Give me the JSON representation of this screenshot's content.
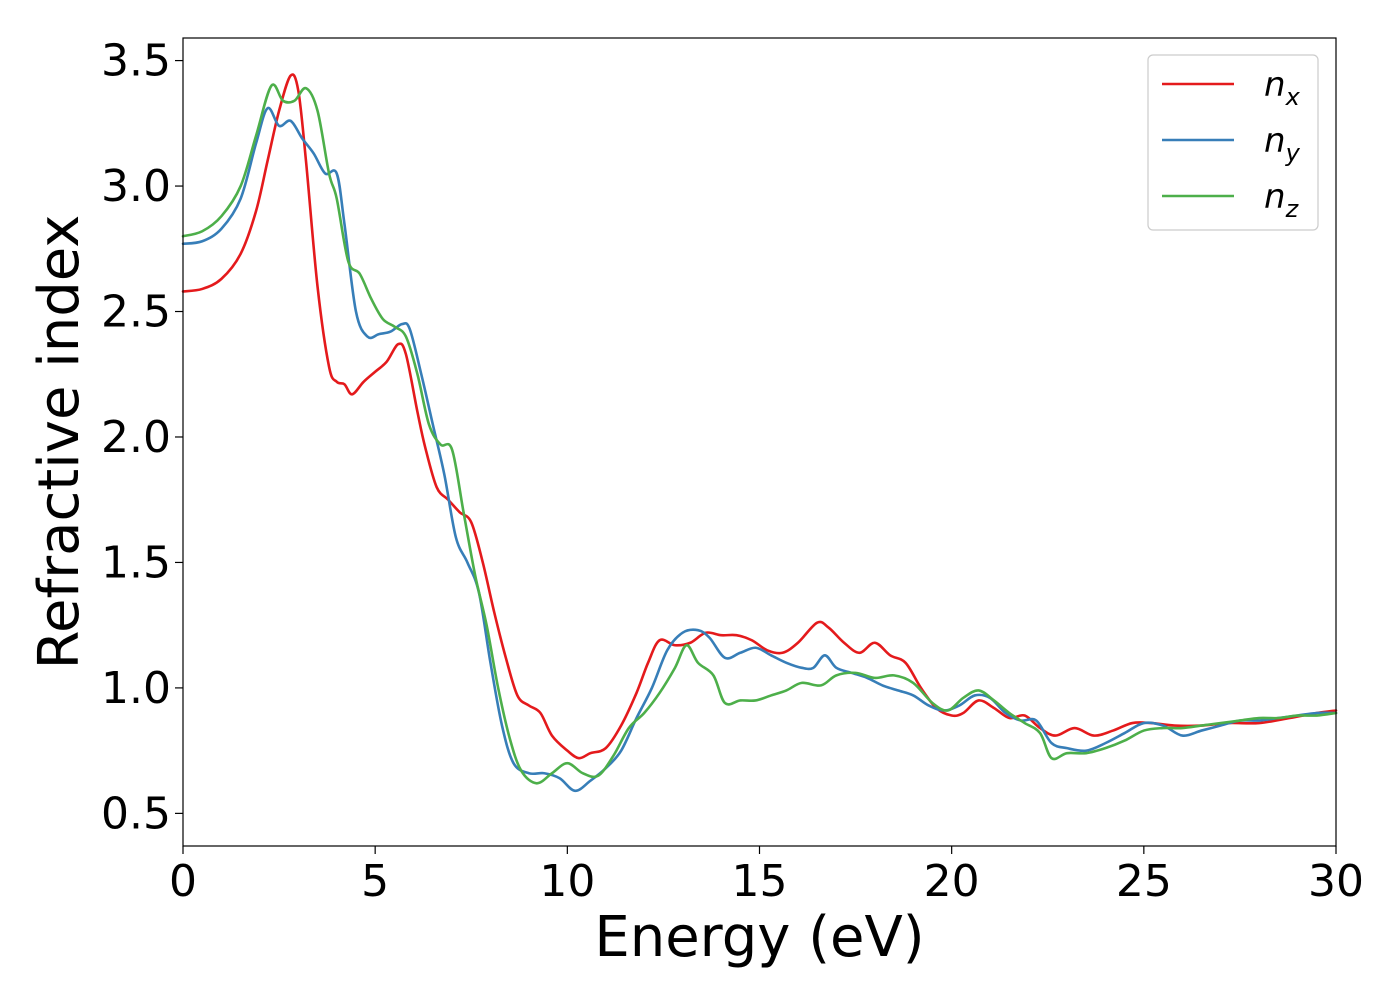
{
  "chart_data": {
    "type": "line",
    "title": "",
    "xlabel": "Energy (eV)",
    "ylabel": "Refractive index",
    "xlim": [
      0,
      30
    ],
    "ylim": [
      0.37,
      3.59
    ],
    "xticks": [
      0,
      5,
      10,
      15,
      20,
      25,
      30
    ],
    "xtick_labels": [
      "0",
      "5",
      "10",
      "15",
      "20",
      "25",
      "30"
    ],
    "yticks": [
      0.5,
      1.0,
      1.5,
      2.0,
      2.5,
      3.0,
      3.5
    ],
    "ytick_labels": [
      "0.5",
      "1.0",
      "1.5",
      "2.0",
      "2.5",
      "3.0",
      "3.5"
    ],
    "grid": false,
    "legend_position": "top-right",
    "series": [
      {
        "name": "n_x",
        "legend_base": "n",
        "legend_sub": "x",
        "color": "#e41a1c",
        "points": [
          [
            0,
            2.58
          ],
          [
            0.5,
            2.59
          ],
          [
            1.0,
            2.63
          ],
          [
            1.5,
            2.73
          ],
          [
            1.9,
            2.9
          ],
          [
            2.2,
            3.1
          ],
          [
            2.5,
            3.3
          ],
          [
            2.8,
            3.44
          ],
          [
            3.0,
            3.38
          ],
          [
            3.2,
            3.1
          ],
          [
            3.5,
            2.6
          ],
          [
            3.8,
            2.28
          ],
          [
            4.0,
            2.22
          ],
          [
            4.2,
            2.21
          ],
          [
            4.4,
            2.17
          ],
          [
            4.7,
            2.22
          ],
          [
            5.0,
            2.26
          ],
          [
            5.3,
            2.3
          ],
          [
            5.6,
            2.37
          ],
          [
            5.8,
            2.33
          ],
          [
            6.1,
            2.1
          ],
          [
            6.3,
            1.96
          ],
          [
            6.6,
            1.8
          ],
          [
            6.9,
            1.75
          ],
          [
            7.2,
            1.7
          ],
          [
            7.5,
            1.66
          ],
          [
            7.8,
            1.5
          ],
          [
            8.1,
            1.3
          ],
          [
            8.4,
            1.12
          ],
          [
            8.7,
            0.97
          ],
          [
            9.0,
            0.93
          ],
          [
            9.3,
            0.9
          ],
          [
            9.6,
            0.81
          ],
          [
            10.0,
            0.75
          ],
          [
            10.3,
            0.72
          ],
          [
            10.6,
            0.74
          ],
          [
            11.0,
            0.76
          ],
          [
            11.4,
            0.85
          ],
          [
            11.8,
            0.98
          ],
          [
            12.1,
            1.1
          ],
          [
            12.4,
            1.19
          ],
          [
            12.8,
            1.17
          ],
          [
            13.2,
            1.18
          ],
          [
            13.6,
            1.22
          ],
          [
            14.0,
            1.21
          ],
          [
            14.4,
            1.21
          ],
          [
            14.8,
            1.19
          ],
          [
            15.2,
            1.15
          ],
          [
            15.6,
            1.14
          ],
          [
            16.0,
            1.18
          ],
          [
            16.5,
            1.26
          ],
          [
            16.8,
            1.24
          ],
          [
            17.2,
            1.18
          ],
          [
            17.6,
            1.14
          ],
          [
            18.0,
            1.18
          ],
          [
            18.4,
            1.13
          ],
          [
            18.8,
            1.1
          ],
          [
            19.2,
            1.0
          ],
          [
            19.6,
            0.92
          ],
          [
            20.0,
            0.89
          ],
          [
            20.3,
            0.9
          ],
          [
            20.7,
            0.95
          ],
          [
            21.1,
            0.92
          ],
          [
            21.5,
            0.88
          ],
          [
            21.9,
            0.89
          ],
          [
            22.3,
            0.84
          ],
          [
            22.7,
            0.81
          ],
          [
            23.2,
            0.84
          ],
          [
            23.7,
            0.81
          ],
          [
            24.2,
            0.83
          ],
          [
            24.7,
            0.86
          ],
          [
            25.2,
            0.86
          ],
          [
            25.8,
            0.85
          ],
          [
            26.5,
            0.85
          ],
          [
            27.2,
            0.86
          ],
          [
            28.0,
            0.86
          ],
          [
            28.8,
            0.88
          ],
          [
            29.5,
            0.9
          ],
          [
            30.0,
            0.91
          ]
        ]
      },
      {
        "name": "n_y",
        "legend_base": "n",
        "legend_sub": "y",
        "color": "#377eb8",
        "points": [
          [
            0,
            2.77
          ],
          [
            0.5,
            2.78
          ],
          [
            1.0,
            2.83
          ],
          [
            1.5,
            2.95
          ],
          [
            1.9,
            3.17
          ],
          [
            2.2,
            3.31
          ],
          [
            2.5,
            3.24
          ],
          [
            2.8,
            3.26
          ],
          [
            3.1,
            3.19
          ],
          [
            3.4,
            3.13
          ],
          [
            3.7,
            3.05
          ],
          [
            4.0,
            3.05
          ],
          [
            4.2,
            2.85
          ],
          [
            4.5,
            2.5
          ],
          [
            4.8,
            2.4
          ],
          [
            5.1,
            2.41
          ],
          [
            5.4,
            2.42
          ],
          [
            5.7,
            2.45
          ],
          [
            5.9,
            2.43
          ],
          [
            6.2,
            2.25
          ],
          [
            6.5,
            2.05
          ],
          [
            6.8,
            1.85
          ],
          [
            7.1,
            1.6
          ],
          [
            7.4,
            1.5
          ],
          [
            7.7,
            1.38
          ],
          [
            8.0,
            1.1
          ],
          [
            8.3,
            0.85
          ],
          [
            8.6,
            0.7
          ],
          [
            9.0,
            0.66
          ],
          [
            9.4,
            0.66
          ],
          [
            9.8,
            0.64
          ],
          [
            10.2,
            0.59
          ],
          [
            10.6,
            0.63
          ],
          [
            11.0,
            0.68
          ],
          [
            11.4,
            0.75
          ],
          [
            11.8,
            0.88
          ],
          [
            12.2,
            1.0
          ],
          [
            12.6,
            1.15
          ],
          [
            13.0,
            1.22
          ],
          [
            13.4,
            1.23
          ],
          [
            13.7,
            1.2
          ],
          [
            14.1,
            1.12
          ],
          [
            14.5,
            1.14
          ],
          [
            14.9,
            1.16
          ],
          [
            15.3,
            1.13
          ],
          [
            15.7,
            1.1
          ],
          [
            16.1,
            1.08
          ],
          [
            16.4,
            1.08
          ],
          [
            16.7,
            1.13
          ],
          [
            17.0,
            1.08
          ],
          [
            17.4,
            1.06
          ],
          [
            17.8,
            1.04
          ],
          [
            18.2,
            1.01
          ],
          [
            18.6,
            0.99
          ],
          [
            19.0,
            0.97
          ],
          [
            19.4,
            0.93
          ],
          [
            19.8,
            0.91
          ],
          [
            20.2,
            0.93
          ],
          [
            20.6,
            0.97
          ],
          [
            21.0,
            0.96
          ],
          [
            21.4,
            0.9
          ],
          [
            21.8,
            0.87
          ],
          [
            22.2,
            0.87
          ],
          [
            22.6,
            0.78
          ],
          [
            23.0,
            0.76
          ],
          [
            23.5,
            0.75
          ],
          [
            24.0,
            0.78
          ],
          [
            24.5,
            0.82
          ],
          [
            25.0,
            0.86
          ],
          [
            25.5,
            0.85
          ],
          [
            26.0,
            0.81
          ],
          [
            26.5,
            0.83
          ],
          [
            27.0,
            0.85
          ],
          [
            27.5,
            0.87
          ],
          [
            28.0,
            0.87
          ],
          [
            28.5,
            0.88
          ],
          [
            29.0,
            0.89
          ],
          [
            29.5,
            0.9
          ],
          [
            30.0,
            0.9
          ]
        ]
      },
      {
        "name": "n_z",
        "legend_base": "n",
        "legend_sub": "z",
        "color": "#4daf4a",
        "points": [
          [
            0,
            2.8
          ],
          [
            0.5,
            2.82
          ],
          [
            1.0,
            2.88
          ],
          [
            1.5,
            3.0
          ],
          [
            1.9,
            3.2
          ],
          [
            2.3,
            3.4
          ],
          [
            2.6,
            3.34
          ],
          [
            2.9,
            3.34
          ],
          [
            3.2,
            3.39
          ],
          [
            3.5,
            3.3
          ],
          [
            3.8,
            3.05
          ],
          [
            4.0,
            2.95
          ],
          [
            4.3,
            2.7
          ],
          [
            4.6,
            2.65
          ],
          [
            4.9,
            2.55
          ],
          [
            5.2,
            2.47
          ],
          [
            5.5,
            2.44
          ],
          [
            5.8,
            2.4
          ],
          [
            6.1,
            2.25
          ],
          [
            6.4,
            2.05
          ],
          [
            6.7,
            1.97
          ],
          [
            7.0,
            1.95
          ],
          [
            7.3,
            1.7
          ],
          [
            7.6,
            1.45
          ],
          [
            7.9,
            1.25
          ],
          [
            8.2,
            1.0
          ],
          [
            8.5,
            0.8
          ],
          [
            8.8,
            0.67
          ],
          [
            9.2,
            0.62
          ],
          [
            9.6,
            0.66
          ],
          [
            10.0,
            0.7
          ],
          [
            10.4,
            0.66
          ],
          [
            10.8,
            0.65
          ],
          [
            11.2,
            0.73
          ],
          [
            11.6,
            0.84
          ],
          [
            12.0,
            0.9
          ],
          [
            12.4,
            0.98
          ],
          [
            12.8,
            1.08
          ],
          [
            13.1,
            1.17
          ],
          [
            13.4,
            1.1
          ],
          [
            13.8,
            1.05
          ],
          [
            14.1,
            0.94
          ],
          [
            14.5,
            0.95
          ],
          [
            14.9,
            0.95
          ],
          [
            15.3,
            0.97
          ],
          [
            15.7,
            0.99
          ],
          [
            16.1,
            1.02
          ],
          [
            16.6,
            1.01
          ],
          [
            17.0,
            1.05
          ],
          [
            17.5,
            1.06
          ],
          [
            18.0,
            1.04
          ],
          [
            18.5,
            1.05
          ],
          [
            19.0,
            1.02
          ],
          [
            19.5,
            0.94
          ],
          [
            19.9,
            0.91
          ],
          [
            20.3,
            0.96
          ],
          [
            20.7,
            0.99
          ],
          [
            21.1,
            0.95
          ],
          [
            21.5,
            0.9
          ],
          [
            21.9,
            0.86
          ],
          [
            22.3,
            0.82
          ],
          [
            22.6,
            0.72
          ],
          [
            23.0,
            0.74
          ],
          [
            23.5,
            0.74
          ],
          [
            24.0,
            0.76
          ],
          [
            24.5,
            0.79
          ],
          [
            25.0,
            0.83
          ],
          [
            25.5,
            0.84
          ],
          [
            26.0,
            0.84
          ],
          [
            26.5,
            0.85
          ],
          [
            27.0,
            0.86
          ],
          [
            27.5,
            0.87
          ],
          [
            28.0,
            0.88
          ],
          [
            28.5,
            0.88
          ],
          [
            29.0,
            0.89
          ],
          [
            29.5,
            0.89
          ],
          [
            30.0,
            0.9
          ]
        ]
      }
    ]
  }
}
